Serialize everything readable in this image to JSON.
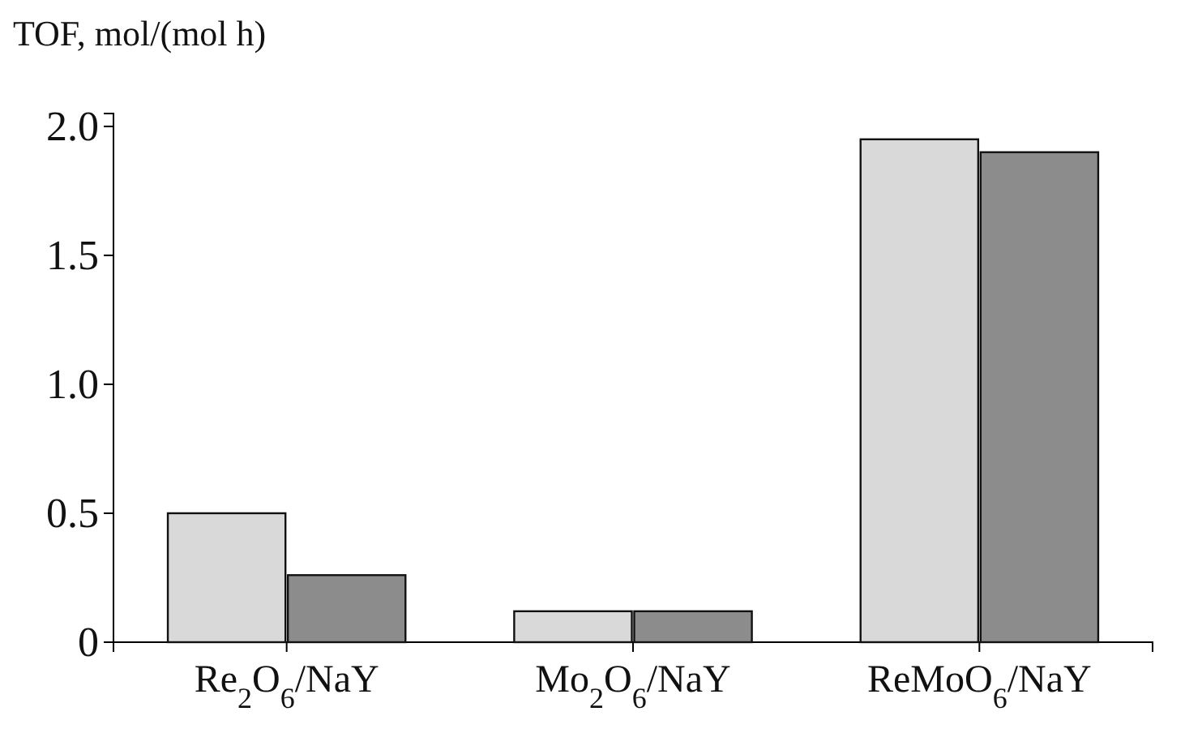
{
  "chart_data": {
    "type": "bar",
    "ylabel": "TOF, mol/(mol h)",
    "categories": [
      "Re$_{2}$O$_{6}$/NaY",
      "Mo$_{2}$O$_{6}$/NaY",
      "ReMoO$_{6}$/NaY"
    ],
    "series": [
      {
        "color": "#d9d9d9",
        "values": [
          0.5,
          0.12,
          1.95
        ]
      },
      {
        "color": "#8c8c8c",
        "values": [
          0.26,
          0.12,
          1.9
        ]
      }
    ],
    "ylim": [
      0,
      2.05
    ],
    "yticks": [
      0,
      {
        "value": 0.5,
        "label": "0.5"
      },
      {
        "value": 1,
        "label": "1.0"
      },
      {
        "value": 1.5,
        "label": "1.5"
      },
      {
        "value": 2,
        "label": "2.0"
      }
    ],
    "grid": false
  }
}
